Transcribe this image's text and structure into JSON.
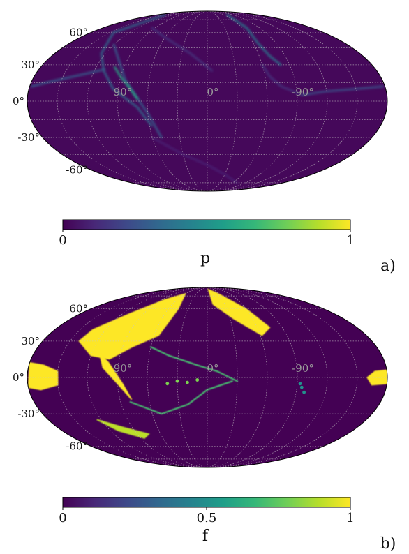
{
  "chart_data": [
    {
      "type": "heatmap",
      "projection": "mollweide",
      "panel_label": "a)",
      "title": "",
      "lat_ticks": [
        {
          "value": 60,
          "label": "60°"
        },
        {
          "value": 30,
          "label": "30°"
        },
        {
          "value": 0,
          "label": "0°"
        },
        {
          "value": -30,
          "label": "-30°"
        },
        {
          "value": -60,
          "label": "-60°"
        }
      ],
      "lon_ticks": [
        {
          "value": 90,
          "label": "90°"
        },
        {
          "value": 0,
          "label": "0°"
        },
        {
          "value": -90,
          "label": "-90°"
        }
      ],
      "grid": true,
      "colormap": "viridis",
      "colorbar": {
        "label": "p",
        "range": [
          0,
          1
        ],
        "ticks": [
          {
            "value": 0,
            "label": "0"
          },
          {
            "value": 1,
            "label": "1"
          }
        ]
      },
      "background_value": 0.02,
      "features": [
        {
          "kind": "arc",
          "lon": [
            150,
            145,
            125,
            110,
            95,
            70,
            58
          ],
          "lat": [
            82,
            60,
            40,
            25,
            10,
            -5,
            -20
          ],
          "value": 0.35
        },
        {
          "kind": "arc",
          "lon": [
            120,
            95,
            85,
            75,
            60,
            50
          ],
          "lat": [
            48,
            30,
            18,
            8,
            -10,
            -30
          ],
          "value": 0.3
        },
        {
          "kind": "arc",
          "lon": [
            100,
            90,
            80,
            70
          ],
          "lat": [
            28,
            20,
            12,
            2
          ],
          "value": 0.6
        },
        {
          "kind": "arc",
          "lon": [
            178,
            160,
            130,
            110
          ],
          "lat": [
            12,
            16,
            22,
            26
          ],
          "value": 0.3
        },
        {
          "kind": "arc",
          "lon": [
            95,
            60,
            20,
            -5
          ],
          "lat": [
            65,
            55,
            40,
            25
          ],
          "value": 0.15
        },
        {
          "kind": "arc",
          "lon": [
            -70,
            -68,
            -66,
            -72,
            -80
          ],
          "lat": [
            82,
            65,
            50,
            38,
            30
          ],
          "value": 0.4
        },
        {
          "kind": "arc",
          "lon": [
            -95,
            -120,
            -150,
            -178
          ],
          "lat": [
            5,
            8,
            10,
            12
          ],
          "value": 0.25
        },
        {
          "kind": "arc",
          "lon": [
            -60,
            -65,
            -75,
            -95
          ],
          "lat": [
            30,
            20,
            12,
            5
          ],
          "value": 0.15
        },
        {
          "kind": "arc",
          "lon": [
            60,
            30,
            0,
            -30,
            -70
          ],
          "lat": [
            -30,
            -45,
            -55,
            -65,
            -75
          ],
          "value": 0.1
        }
      ]
    },
    {
      "type": "heatmap",
      "projection": "mollweide",
      "panel_label": "b)",
      "title": "",
      "lat_ticks": [
        {
          "value": 60,
          "label": "60°"
        },
        {
          "value": 30,
          "label": "30°"
        },
        {
          "value": 0,
          "label": "0°"
        },
        {
          "value": -30,
          "label": "-30°"
        },
        {
          "value": -60,
          "label": "-60°"
        }
      ],
      "lon_ticks": [
        {
          "value": 90,
          "label": "90°"
        },
        {
          "value": 0,
          "label": "0°"
        },
        {
          "value": -90,
          "label": "-90°"
        }
      ],
      "grid": true,
      "colormap": "viridis",
      "colorbar": {
        "label": "f",
        "range": [
          0,
          1
        ],
        "ticks": [
          {
            "value": 0,
            "label": "0"
          },
          {
            "value": 0.5,
            "label": "0.5"
          },
          {
            "value": 1,
            "label": "1"
          }
        ]
      },
      "background_value": 0.0,
      "features": [
        {
          "kind": "region",
          "lon": [
            135,
            110,
            85,
            60,
            45,
            55,
            80,
            100,
            120,
            140
          ],
          "lat": [
            40,
            55,
            70,
            78,
            60,
            35,
            25,
            15,
            18,
            30
          ],
          "value": 1.0
        },
        {
          "kind": "region",
          "lon": [
            112,
            100,
            85,
            78,
            90,
            105
          ],
          "lat": [
            20,
            12,
            -5,
            -18,
            -5,
            8
          ],
          "value": 1.0
        },
        {
          "kind": "region",
          "lon": [
            -5,
            -30,
            -60,
            -75,
            -62,
            -35,
            -10
          ],
          "lat": [
            85,
            78,
            60,
            42,
            35,
            50,
            65
          ],
          "value": 1.0
        },
        {
          "kind": "region",
          "lon": [
            180,
            165,
            150,
            150,
            168,
            180
          ],
          "lat": [
            12,
            10,
            5,
            -6,
            -10,
            -8
          ],
          "value": 1.0
        },
        {
          "kind": "region",
          "lon": [
            -180,
            -168,
            -160,
            -165,
            -180
          ],
          "lat": [
            6,
            5,
            0,
            -6,
            -5
          ],
          "value": 1.0
        },
        {
          "kind": "region",
          "lon": [
            125,
            100,
            75,
            85,
            110
          ],
          "lat": [
            -35,
            -42,
            -48,
            -52,
            -45
          ],
          "value": 0.9
        },
        {
          "kind": "arc",
          "lon": [
            60,
            40,
            10,
            -10,
            -30
          ],
          "lat": [
            25,
            18,
            10,
            5,
            -3
          ],
          "value": 0.7
        },
        {
          "kind": "arc",
          "lon": [
            80,
            50,
            20,
            0,
            -25
          ],
          "lat": [
            -20,
            -30,
            -22,
            -10,
            -3
          ],
          "value": 0.7
        },
        {
          "kind": "spot",
          "lon": [
            -95,
            -98,
            -93
          ],
          "lat": [
            -8,
            -12,
            -5
          ],
          "value": 0.5
        },
        {
          "kind": "spot",
          "lon": [
            30,
            20,
            10,
            40
          ],
          "lat": [
            -3,
            -4,
            -2,
            -5
          ],
          "value": 0.8
        }
      ]
    }
  ]
}
